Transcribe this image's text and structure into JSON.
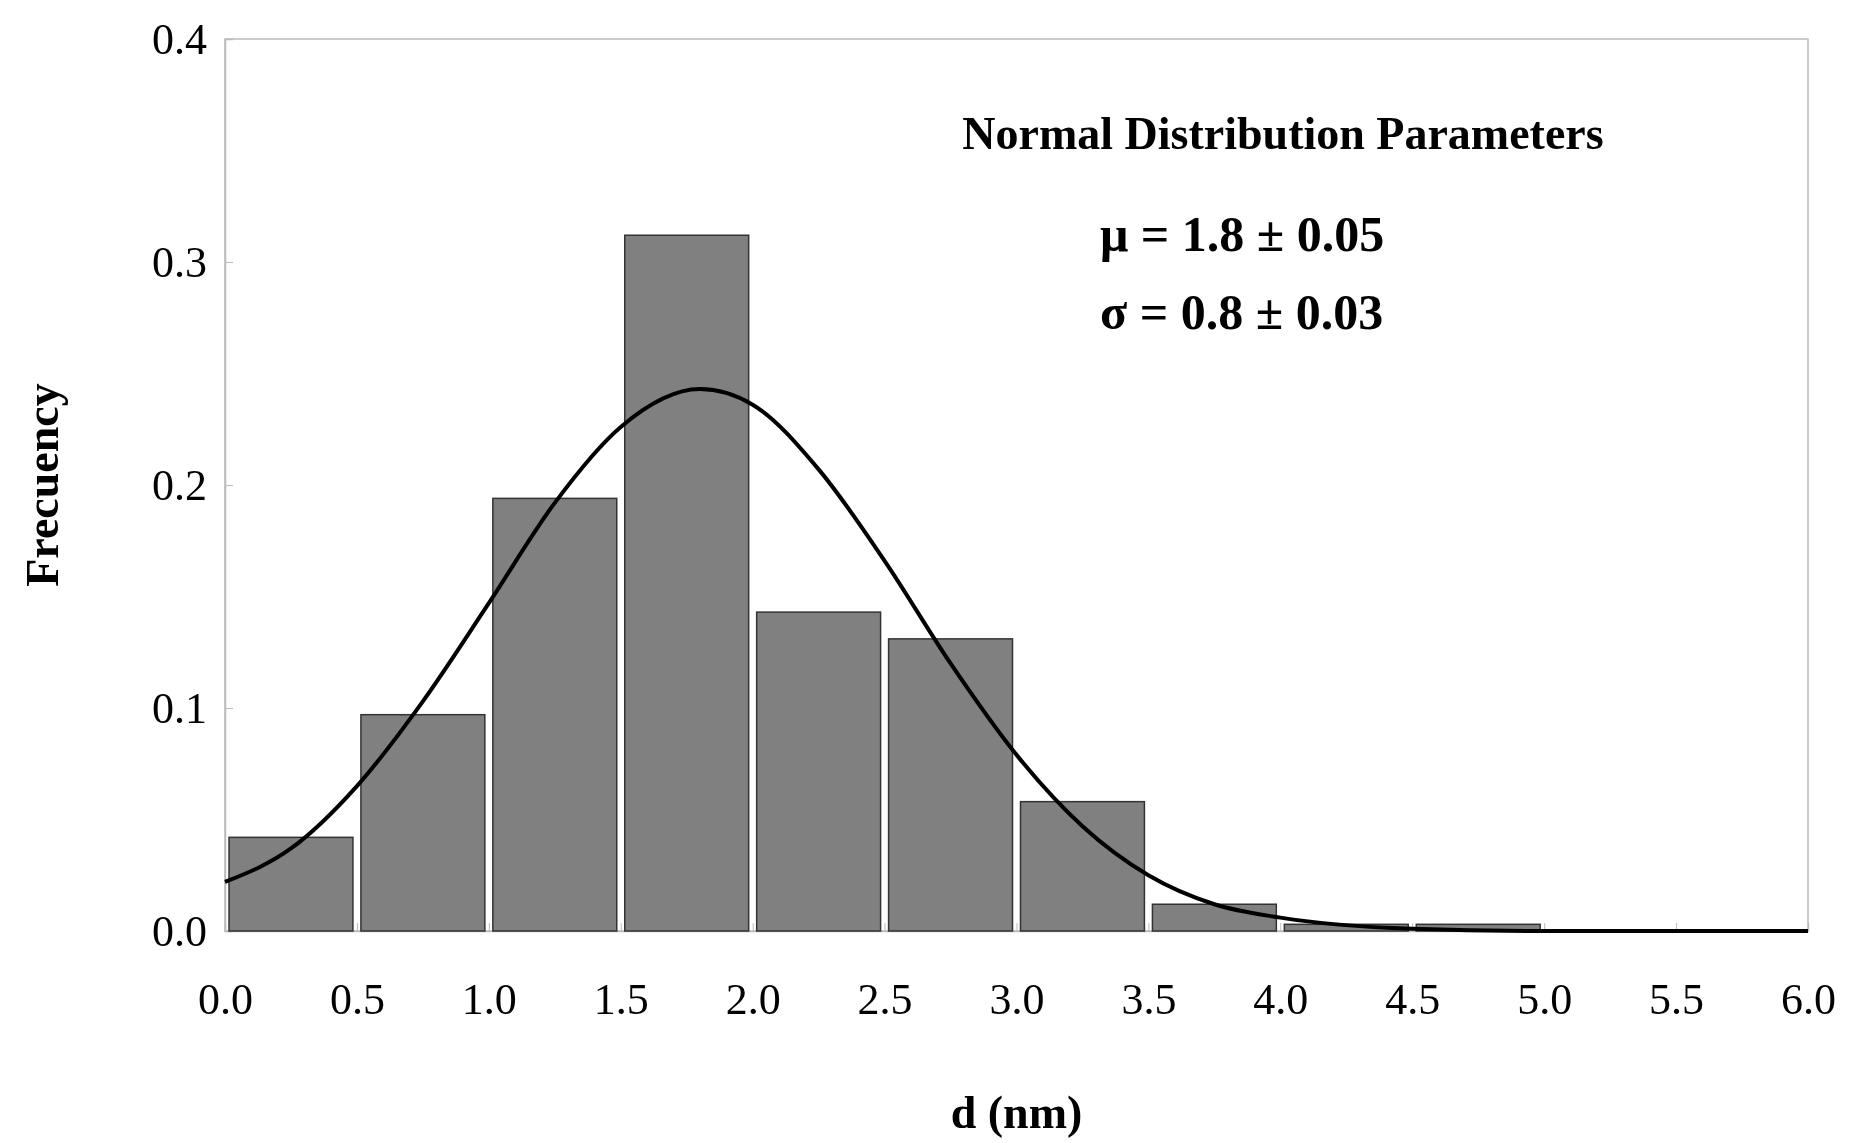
{
  "chart_data": {
    "type": "histogram",
    "xlabel": "d (nm)",
    "ylabel": "Frecuency",
    "bins": [
      0,
      0.5,
      1,
      1.5,
      2,
      2.5,
      3,
      3.5,
      4,
      4.5,
      5,
      5.5,
      6
    ],
    "values": [
      0.042,
      0.097,
      0.194,
      0.312,
      0.143,
      0.131,
      0.058,
      0.012,
      0.003,
      0.003,
      0,
      0
    ],
    "color": "#808080",
    "series": [
      {
        "type": "line",
        "color": "#000000",
        "x": [
          0,
          0.25,
          0.5,
          0.75,
          1,
          1.25,
          1.5,
          1.8,
          2,
          2.25,
          2.5,
          2.75,
          3,
          3.25,
          3.5,
          3.75,
          4,
          4.5,
          5,
          6
        ],
        "values": [
          0.022,
          0.037,
          0.065,
          0.103,
          0.147,
          0.192,
          0.226,
          0.243,
          0.236,
          0.207,
          0.166,
          0.12,
          0.079,
          0.047,
          0.025,
          0.012,
          0.006,
          0.001,
          0,
          0
        ]
      }
    ],
    "xlim": [
      0,
      6
    ],
    "ylim": [
      0,
      0.4
    ],
    "xticks": [
      {
        "value": 0,
        "label": "0.0"
      },
      0.5,
      {
        "value": 1,
        "label": "1.0"
      },
      1.5,
      {
        "value": 2,
        "label": "2.0"
      },
      2.5,
      {
        "value": 3,
        "label": "3.0"
      },
      3.5,
      {
        "value": 4,
        "label": "4.0"
      },
      4.5,
      {
        "value": 5,
        "label": "5.0"
      },
      5.5,
      {
        "value": 6,
        "label": "6.0"
      }
    ],
    "yticks": [
      {
        "value": 0,
        "label": "0.0"
      },
      0.1,
      0.2,
      0.3,
      0.4
    ],
    "grid": false,
    "annotations": [
      "Normal Distribution Parameters",
      "μ = 1.8 ± 0.05",
      "σ = 0.8 ± 0.03"
    ]
  }
}
